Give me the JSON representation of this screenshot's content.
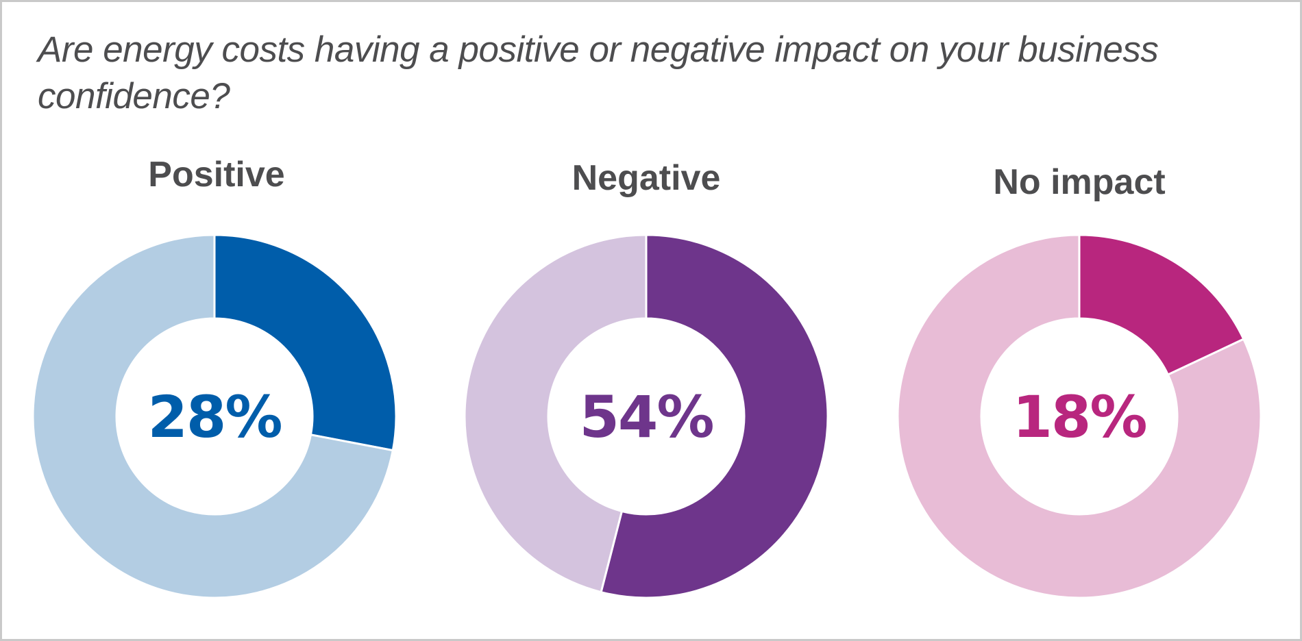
{
  "chart_data": {
    "type": "pie",
    "title": "Are energy costs having a positive or negative impact on your business confidence?",
    "charts": [
      {
        "name": "Positive",
        "value": 28,
        "label": "28%",
        "color": "#005daa",
        "remainder_color": "#b3cde3"
      },
      {
        "name": "Negative",
        "value": 54,
        "label": "54%",
        "color": "#6e358b",
        "remainder_color": "#d4c3de"
      },
      {
        "name": "No impact",
        "value": 18,
        "label": "18%",
        "color": "#b8267e",
        "remainder_color": "#e8bcd6"
      }
    ],
    "units": "percent",
    "total": 100
  },
  "colors": {
    "text": "#4d4d4f",
    "border": "#c9c9c9"
  }
}
